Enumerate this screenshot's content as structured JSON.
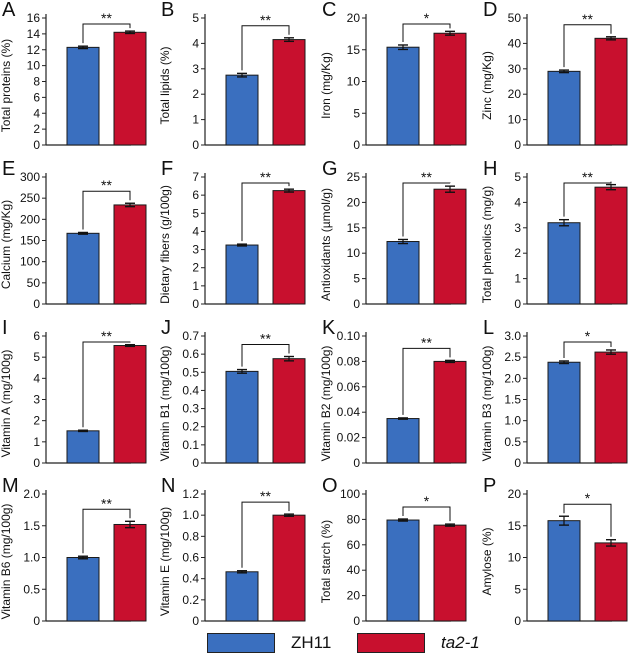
{
  "colors": {
    "zh11": "#3a6fbf",
    "ta2": "#c8102e",
    "axis": "#222222"
  },
  "legend": [
    {
      "label": "ZH11",
      "color": "#3a6fbf"
    },
    {
      "label": "ta2-1",
      "color": "#c8102e",
      "italic": true
    }
  ],
  "chart_data": [
    {
      "panel": "A",
      "type": "bar",
      "categories": [
        "ZH11",
        "ta2-1"
      ],
      "ylabel": "Total proteins (%)",
      "yticks": [
        "0",
        "2",
        "4",
        "6",
        "8",
        "10",
        "12",
        "14",
        "16"
      ],
      "ylim": [
        0,
        16
      ],
      "values": [
        12.3,
        14.2
      ],
      "errors": [
        0.15,
        0.15
      ],
      "significance": "**"
    },
    {
      "panel": "B",
      "type": "bar",
      "categories": [
        "ZH11",
        "ta2-1"
      ],
      "ylabel": "Total lipids (%)",
      "yticks": [
        "0",
        "1",
        "2",
        "3",
        "4",
        "5"
      ],
      "ylim": [
        0,
        5
      ],
      "values": [
        2.75,
        4.15
      ],
      "errors": [
        0.07,
        0.07
      ],
      "significance": "**"
    },
    {
      "panel": "C",
      "type": "bar",
      "categories": [
        "ZH11",
        "ta2-1"
      ],
      "ylabel": "Iron (mg/Kg)",
      "yticks": [
        "0",
        "5",
        "10",
        "15",
        "20"
      ],
      "ylim": [
        0,
        20
      ],
      "values": [
        15.4,
        17.6
      ],
      "errors": [
        0.35,
        0.3
      ],
      "significance": "*"
    },
    {
      "panel": "D",
      "type": "bar",
      "categories": [
        "ZH11",
        "ta2-1"
      ],
      "ylabel": "Zinc (mg/Kg)",
      "yticks": [
        "0",
        "10",
        "20",
        "30",
        "40",
        "50"
      ],
      "ylim": [
        0,
        50
      ],
      "values": [
        29.0,
        42.0
      ],
      "errors": [
        0.5,
        0.6
      ],
      "significance": "**"
    },
    {
      "panel": "E",
      "type": "bar",
      "categories": [
        "ZH11",
        "ta2-1"
      ],
      "ylabel": "Calcium (mg/Kg)",
      "yticks": [
        "0",
        "50",
        "100",
        "150",
        "200",
        "250",
        "300"
      ],
      "ylim": [
        0,
        300
      ],
      "values": [
        167,
        234
      ],
      "errors": [
        2,
        4
      ],
      "significance": "**"
    },
    {
      "panel": "F",
      "type": "bar",
      "categories": [
        "ZH11",
        "ta2-1"
      ],
      "ylabel": "Dietary fibers (g/100g)",
      "yticks": [
        "0",
        "1",
        "2",
        "3",
        "4",
        "5",
        "6",
        "7"
      ],
      "ylim": [
        0,
        7
      ],
      "values": [
        3.25,
        6.25
      ],
      "errors": [
        0.05,
        0.08
      ],
      "significance": "**"
    },
    {
      "panel": "G",
      "type": "bar",
      "categories": [
        "ZH11",
        "ta2-1"
      ],
      "ylabel": "Antioxidants (µmol/g)",
      "yticks": [
        "0",
        "5",
        "10",
        "15",
        "20",
        "25"
      ],
      "ylim": [
        0,
        25
      ],
      "values": [
        12.3,
        22.6
      ],
      "errors": [
        0.4,
        0.6
      ],
      "significance": "**"
    },
    {
      "panel": "H",
      "type": "bar",
      "categories": [
        "ZH11",
        "ta2-1"
      ],
      "ylabel": "Total phenolics (mg/g)",
      "yticks": [
        "0",
        "1",
        "2",
        "3",
        "4",
        "5"
      ],
      "ylim": [
        0,
        5
      ],
      "values": [
        3.2,
        4.6
      ],
      "errors": [
        0.12,
        0.1
      ],
      "significance": "**"
    },
    {
      "panel": "I",
      "type": "bar",
      "categories": [
        "ZH11",
        "ta2-1"
      ],
      "ylabel": "Vitamin A (mg/100g)",
      "yticks": [
        "0",
        "1",
        "2",
        "3",
        "4",
        "5",
        "6"
      ],
      "ylim": [
        0,
        6
      ],
      "values": [
        1.52,
        5.55
      ],
      "errors": [
        0.03,
        0.04
      ],
      "significance": "**"
    },
    {
      "panel": "J",
      "type": "bar",
      "categories": [
        "ZH11",
        "ta2-1"
      ],
      "ylabel": "Vitamin B1 (mg/100g)",
      "yticks": [
        "0",
        "0.1",
        "0.2",
        "0.3",
        "0.4",
        "0.5",
        "0.6",
        "0.7"
      ],
      "ylim": [
        0,
        0.7
      ],
      "values": [
        0.505,
        0.575
      ],
      "errors": [
        0.01,
        0.012
      ],
      "significance": "**"
    },
    {
      "panel": "K",
      "type": "bar",
      "categories": [
        "ZH11",
        "ta2-1"
      ],
      "ylabel": "Vitamin B2 (mg/100g)",
      "yticks": [
        "0",
        "0.02",
        "0.04",
        "0.06",
        "0.08",
        "0.10"
      ],
      "ylim": [
        0,
        0.1
      ],
      "values": [
        0.035,
        0.08
      ],
      "errors": [
        0.0005,
        0.0008
      ],
      "significance": "**"
    },
    {
      "panel": "L",
      "type": "bar",
      "categories": [
        "ZH11",
        "ta2-1"
      ],
      "ylabel": "Vitamin B3 (mg/100g)",
      "yticks": [
        "0",
        "0.5",
        "1.0",
        "1.5",
        "2.0",
        "2.5",
        "3.0"
      ],
      "ylim": [
        0,
        3
      ],
      "values": [
        2.38,
        2.62
      ],
      "errors": [
        0.03,
        0.05
      ],
      "significance": "*"
    },
    {
      "panel": "M",
      "type": "bar",
      "categories": [
        "ZH11",
        "ta2-1"
      ],
      "ylabel": "Vitamin B6 (mg/100g)",
      "yticks": [
        "0",
        "0.5",
        "1.0",
        "1.5",
        "2.0"
      ],
      "ylim": [
        0,
        2
      ],
      "values": [
        1.0,
        1.52
      ],
      "errors": [
        0.02,
        0.05
      ],
      "significance": "**"
    },
    {
      "panel": "N",
      "type": "bar",
      "categories": [
        "ZH11",
        "ta2-1"
      ],
      "ylabel": "Vitamin E (mg/100g)",
      "yticks": [
        "0",
        "0.2",
        "0.4",
        "0.6",
        "0.8",
        "1.0",
        "1.2"
      ],
      "ylim": [
        0,
        1.2
      ],
      "values": [
        0.465,
        1.0
      ],
      "errors": [
        0.01,
        0.01
      ],
      "significance": "**"
    },
    {
      "panel": "O",
      "type": "bar",
      "categories": [
        "ZH11",
        "ta2-1"
      ],
      "ylabel": "Total starch (%)",
      "yticks": [
        "0",
        "20",
        "40",
        "60",
        "80",
        "100"
      ],
      "ylim": [
        0,
        100
      ],
      "values": [
        79.5,
        75.5
      ],
      "errors": [
        0.8,
        0.8
      ],
      "significance": "*"
    },
    {
      "panel": "P",
      "type": "bar",
      "categories": [
        "ZH11",
        "ta2-1"
      ],
      "ylabel": "Amylose (%)",
      "yticks": [
        "0",
        "5",
        "10",
        "15",
        "20"
      ],
      "ylim": [
        0,
        20
      ],
      "values": [
        15.8,
        12.3
      ],
      "errors": [
        0.7,
        0.5
      ],
      "significance": "*"
    }
  ]
}
